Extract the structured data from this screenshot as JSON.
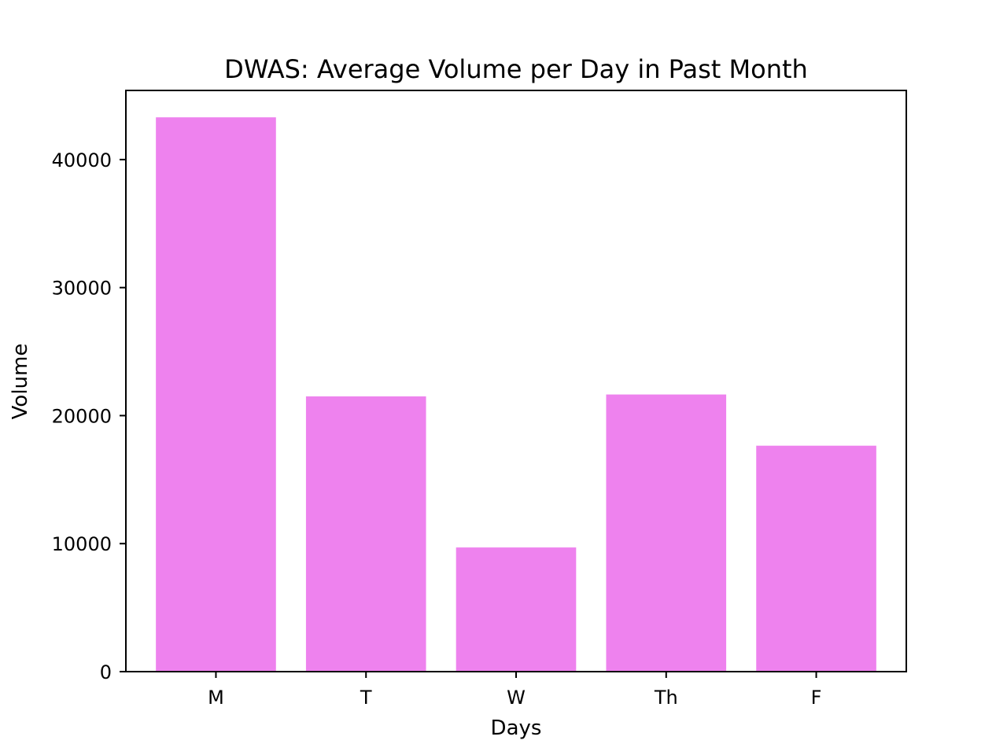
{
  "chart_data": {
    "type": "bar",
    "title": "DWAS: Average Volume per Day in Past Month",
    "xlabel": "Days",
    "ylabel": "Volume",
    "categories": [
      "M",
      "T",
      "W",
      "Th",
      "F"
    ],
    "values": [
      43300,
      21500,
      9700,
      21650,
      17650
    ],
    "ylim": [
      0,
      45400
    ],
    "yticks": [
      0,
      10000,
      20000,
      30000,
      40000
    ],
    "ytick_labels": [
      "0",
      "10000",
      "20000",
      "30000",
      "40000"
    ],
    "grid": false,
    "legend": "none",
    "bar_color": "#ee82ee"
  }
}
